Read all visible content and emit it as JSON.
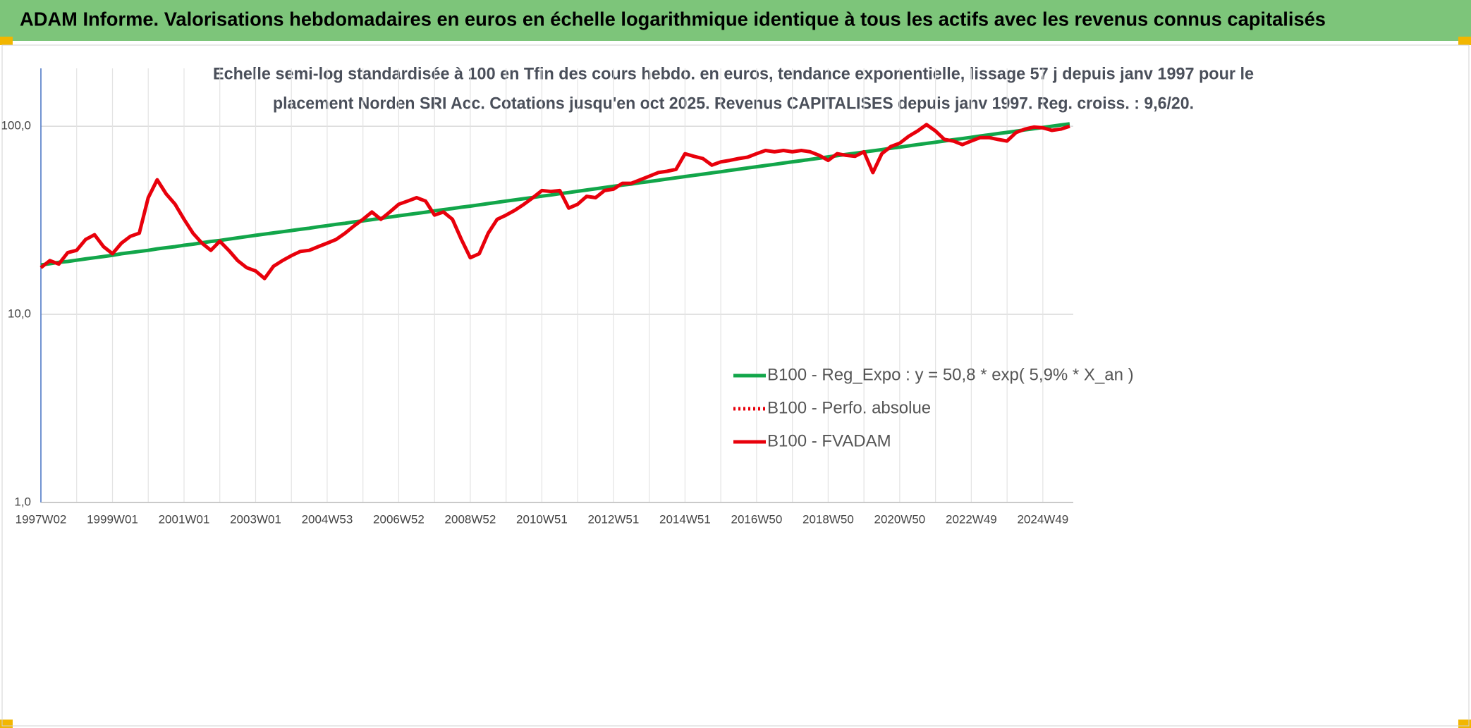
{
  "chart_data": {
    "type": "line",
    "header": "ADAM Informe. Valorisations hebdomadaires en euros en échelle logarithmique identique à tous les actifs avec les revenus connus capitalisés",
    "subtitle": [
      "Echelle semi-log standardisée à 100 en Tfin des cours hebdo. en euros, tendance exponentielle, lissage 57 j depuis janv 1997 pour le",
      "placement Norden SRI Acc. Cotations jusqu'en oct 2025. Revenus CAPITALISES depuis janv 1997. Reg. croiss. : 9,6/20."
    ],
    "categories": [
      "1997W02",
      null,
      null,
      null,
      null,
      null,
      null,
      null,
      "1999W01",
      null,
      null,
      null,
      null,
      null,
      null,
      null,
      "2001W01",
      null,
      null,
      null,
      null,
      null,
      null,
      null,
      "2003W01",
      null,
      null,
      null,
      null,
      null,
      null,
      null,
      "2004W53",
      null,
      null,
      null,
      null,
      null,
      null,
      null,
      "2006W52",
      null,
      null,
      null,
      null,
      null,
      null,
      null,
      "2008W52",
      null,
      null,
      null,
      null,
      null,
      null,
      null,
      "2010W51",
      null,
      null,
      null,
      null,
      null,
      null,
      null,
      "2012W51",
      null,
      null,
      null,
      null,
      null,
      null,
      null,
      "2014W51",
      null,
      null,
      null,
      null,
      null,
      null,
      null,
      "2016W50",
      null,
      null,
      null,
      null,
      null,
      null,
      null,
      "2018W50",
      null,
      null,
      null,
      null,
      null,
      null,
      null,
      "2020W50",
      null,
      null,
      null,
      null,
      null,
      null,
      null,
      "2022W49",
      null,
      null,
      null,
      null,
      null,
      null,
      null,
      "2024W49",
      null,
      null,
      null
    ],
    "ylim": [
      1,
      203
    ],
    "yticks": [
      {
        "value": 1,
        "label": "1,0"
      },
      {
        "value": 10,
        "label": "10,0"
      },
      {
        "value": 100,
        "label": "100,0"
      }
    ],
    "log_scale": true,
    "grid": true,
    "legend": "lower right",
    "series": [
      {
        "name": "B100 - Reg_Expo : y = 50,8 * exp( 5,9% *  X_an )",
        "color": "#12a64a",
        "line_style": "solid",
        "values": [
          18.3,
          18.6,
          18.9,
          19.1,
          19.4,
          19.7,
          20.0,
          20.3,
          20.6,
          21.0,
          21.3,
          21.6,
          21.9,
          22.3,
          22.6,
          22.9,
          23.3,
          23.6,
          24.0,
          24.4,
          24.7,
          25.1,
          25.5,
          25.9,
          26.3,
          26.7,
          27.1,
          27.5,
          27.9,
          28.3,
          28.7,
          29.2,
          29.6,
          30.1,
          30.5,
          31.0,
          31.4,
          31.9,
          32.4,
          32.9,
          33.4,
          33.9,
          34.4,
          34.9,
          35.5,
          36.0,
          36.5,
          37.1,
          37.6,
          38.2,
          38.8,
          39.4,
          40.0,
          40.6,
          41.2,
          41.8,
          42.5,
          43.1,
          43.8,
          44.4,
          45.1,
          45.8,
          46.5,
          47.2,
          47.9,
          48.6,
          49.3,
          50.1,
          50.8,
          51.6,
          52.4,
          53.2,
          54.0,
          54.8,
          55.6,
          56.5,
          57.3,
          58.2,
          59.1,
          60.0,
          60.9,
          61.8,
          62.7,
          63.7,
          64.7,
          65.6,
          66.6,
          67.6,
          68.7,
          69.7,
          70.8,
          71.8,
          72.9,
          74.0,
          75.1,
          76.3,
          77.4,
          78.6,
          79.8,
          81.0,
          82.2,
          83.5,
          84.8,
          86.0,
          87.3,
          88.7,
          90.0,
          91.4,
          92.7,
          94.1,
          95.6,
          97.0,
          98.5,
          100.0,
          101.5,
          103.0
        ]
      },
      {
        "name": "B100 - Perfo. absolue",
        "color": "#e8000b",
        "line_style": "dotted",
        "values": [
          17.7,
          19.3,
          18.5,
          21.3,
          21.9,
          25,
          26.5,
          22.9,
          21,
          23.9,
          26,
          27,
          41.7,
          51.9,
          43.7,
          38.5,
          32,
          27,
          23.9,
          21.9,
          24.5,
          21.9,
          19.3,
          17.7,
          17,
          15.5,
          18,
          19.3,
          20.5,
          21.6,
          21.9,
          22.9,
          23.9,
          25,
          27,
          29.5,
          32,
          35,
          32,
          35,
          38.5,
          40,
          41.7,
          40,
          33.7,
          35,
          32,
          25,
          20,
          21,
          27,
          32,
          33.7,
          35.8,
          38.5,
          41.7,
          45.5,
          45,
          45.5,
          36.7,
          38.5,
          42.4,
          41.7,
          45.5,
          46.3,
          49.7,
          49.7,
          51.9,
          54.2,
          56.7,
          57.6,
          59,
          71.4,
          69.2,
          67.3,
          62.1,
          64.6,
          65.8,
          67.3,
          68.5,
          71.4,
          74.3,
          73.1,
          74.3,
          73.1,
          74.3,
          73.1,
          70,
          65.8,
          71.4,
          70,
          69.2,
          73.1,
          56.7,
          71.4,
          77.9,
          81.2,
          88.4,
          94.4,
          102,
          94.4,
          85,
          83.4,
          79.8,
          83.4,
          87,
          87,
          85,
          83.4,
          92.5,
          96.5,
          99,
          98,
          95,
          96.5,
          100
        ]
      },
      {
        "name": "B100 - FVADAM",
        "color": "#e8000b",
        "line_style": "solid",
        "values": [
          17.7,
          19.3,
          18.5,
          21.3,
          21.9,
          25,
          26.5,
          22.9,
          21,
          23.9,
          26,
          27,
          41.7,
          51.9,
          43.7,
          38.5,
          32,
          27,
          23.9,
          21.9,
          24.5,
          21.9,
          19.3,
          17.7,
          17,
          15.5,
          18,
          19.3,
          20.5,
          21.6,
          21.9,
          22.9,
          23.9,
          25,
          27,
          29.5,
          32,
          35,
          32,
          35,
          38.5,
          40,
          41.7,
          40,
          33.7,
          35,
          32,
          25,
          20,
          21,
          27,
          32,
          33.7,
          35.8,
          38.5,
          41.7,
          45.5,
          45,
          45.5,
          36.7,
          38.5,
          42.4,
          41.7,
          45.5,
          46.3,
          49.7,
          49.7,
          51.9,
          54.2,
          56.7,
          57.6,
          59,
          71.4,
          69.2,
          67.3,
          62.1,
          64.6,
          65.8,
          67.3,
          68.5,
          71.4,
          74.3,
          73.1,
          74.3,
          73.1,
          74.3,
          73.1,
          70,
          65.8,
          71.4,
          70,
          69.2,
          73.1,
          56.7,
          71.4,
          77.9,
          81.2,
          88.4,
          94.4,
          102,
          94.4,
          85,
          83.4,
          79.8,
          83.4,
          87,
          87,
          85,
          83.4,
          92.5,
          96.5,
          99,
          98,
          95,
          96.5,
          100
        ]
      }
    ]
  }
}
